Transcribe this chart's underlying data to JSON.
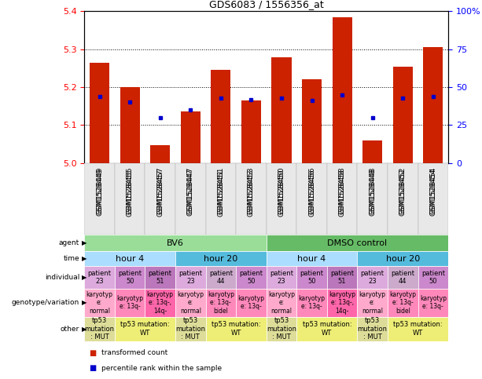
{
  "title": "GDS6083 / 1556356_at",
  "samples": [
    "GSM1528449",
    "GSM1528455",
    "GSM1528457",
    "GSM1528447",
    "GSM1528451",
    "GSM1528453",
    "GSM1528450",
    "GSM1528456",
    "GSM1528458",
    "GSM1528448",
    "GSM1528452",
    "GSM1528454"
  ],
  "bar_values": [
    5.265,
    5.2,
    5.048,
    5.135,
    5.245,
    5.165,
    5.278,
    5.22,
    5.385,
    5.06,
    5.255,
    5.305
  ],
  "dot_values": [
    44,
    40,
    30,
    35,
    43,
    42,
    43,
    41,
    45,
    30,
    43,
    44
  ],
  "ylim_left": [
    5.0,
    5.4
  ],
  "ylim_right": [
    0,
    100
  ],
  "yticks_left": [
    5.0,
    5.1,
    5.2,
    5.3,
    5.4
  ],
  "yticks_right": [
    0,
    25,
    50,
    75,
    100
  ],
  "ytick_right_labels": [
    "0",
    "25",
    "50",
    "75",
    "100%"
  ],
  "bar_color": "#cc2200",
  "dot_color": "#0000cc",
  "agent_row": {
    "groups": [
      {
        "text": "BV6",
        "span": 6,
        "color": "#99dd99"
      },
      {
        "text": "DMSO control",
        "span": 6,
        "color": "#66bb66"
      }
    ]
  },
  "time_row": {
    "groups": [
      {
        "text": "hour 4",
        "span": 3,
        "color": "#aaddff"
      },
      {
        "text": "hour 20",
        "span": 3,
        "color": "#55bbdd"
      },
      {
        "text": "hour 4",
        "span": 3,
        "color": "#aaddff"
      },
      {
        "text": "hour 20",
        "span": 3,
        "color": "#55bbdd"
      }
    ]
  },
  "individual_row": {
    "cells": [
      {
        "text": "patient\n23",
        "color": "#ddaadd"
      },
      {
        "text": "patient\n50",
        "color": "#cc88cc"
      },
      {
        "text": "patient\n51",
        "color": "#bb77bb"
      },
      {
        "text": "patient\n23",
        "color": "#ddaadd"
      },
      {
        "text": "patient\n44",
        "color": "#ccaacc"
      },
      {
        "text": "patient\n50",
        "color": "#cc88cc"
      },
      {
        "text": "patient\n23",
        "color": "#ddaadd"
      },
      {
        "text": "patient\n50",
        "color": "#cc88cc"
      },
      {
        "text": "patient\n51",
        "color": "#bb77bb"
      },
      {
        "text": "patient\n23",
        "color": "#ddaadd"
      },
      {
        "text": "patient\n44",
        "color": "#ccaacc"
      },
      {
        "text": "patient\n50",
        "color": "#cc88cc"
      }
    ]
  },
  "genotype_row": {
    "cells": [
      {
        "text": "karyotyp\ne:\nnormal",
        "color": "#ffaacc"
      },
      {
        "text": "karyotyp\ne: 13q-",
        "color": "#ff88bb"
      },
      {
        "text": "karyotyp\ne: 13q-,\n14q-",
        "color": "#ff66aa"
      },
      {
        "text": "karyotyp\ne:\nnormal",
        "color": "#ffaacc"
      },
      {
        "text": "karyotyp\ne: 13q-\nbidel",
        "color": "#ff88bb"
      },
      {
        "text": "karyotyp\ne: 13q-",
        "color": "#ff88bb"
      },
      {
        "text": "karyotyp\ne:\nnormal",
        "color": "#ffaacc"
      },
      {
        "text": "karyotyp\ne: 13q-",
        "color": "#ff88bb"
      },
      {
        "text": "karyotyp\ne: 13q-,\n14q-",
        "color": "#ff66aa"
      },
      {
        "text": "karyotyp\ne:\nnormal",
        "color": "#ffaacc"
      },
      {
        "text": "karyotyp\ne: 13q-\nbidel",
        "color": "#ff88bb"
      },
      {
        "text": "karyotyp\ne: 13q-",
        "color": "#ff88bb"
      }
    ]
  },
  "other_row": {
    "groups": [
      {
        "text": "tp53\nmutation\n: MUT",
        "span": 1,
        "color": "#dddd99"
      },
      {
        "text": "tp53 mutation:\nWT",
        "span": 2,
        "color": "#eeee77"
      },
      {
        "text": "tp53\nmutation\n: MUT",
        "span": 1,
        "color": "#dddd99"
      },
      {
        "text": "tp53 mutation:\nWT",
        "span": 2,
        "color": "#eeee77"
      },
      {
        "text": "tp53\nmutation\n: MUT",
        "span": 1,
        "color": "#dddd99"
      },
      {
        "text": "tp53 mutation:\nWT",
        "span": 2,
        "color": "#eeee77"
      },
      {
        "text": "tp53\nmutation\n: MUT",
        "span": 1,
        "color": "#dddd99"
      },
      {
        "text": "tp53 mutation:\nWT",
        "span": 2,
        "color": "#eeee77"
      }
    ]
  },
  "row_labels": [
    "agent",
    "time",
    "individual",
    "genotype/variation",
    "other"
  ],
  "legend": [
    {
      "color": "#cc2200",
      "label": "transformed count"
    },
    {
      "color": "#0000cc",
      "label": "percentile rank within the sample"
    }
  ]
}
